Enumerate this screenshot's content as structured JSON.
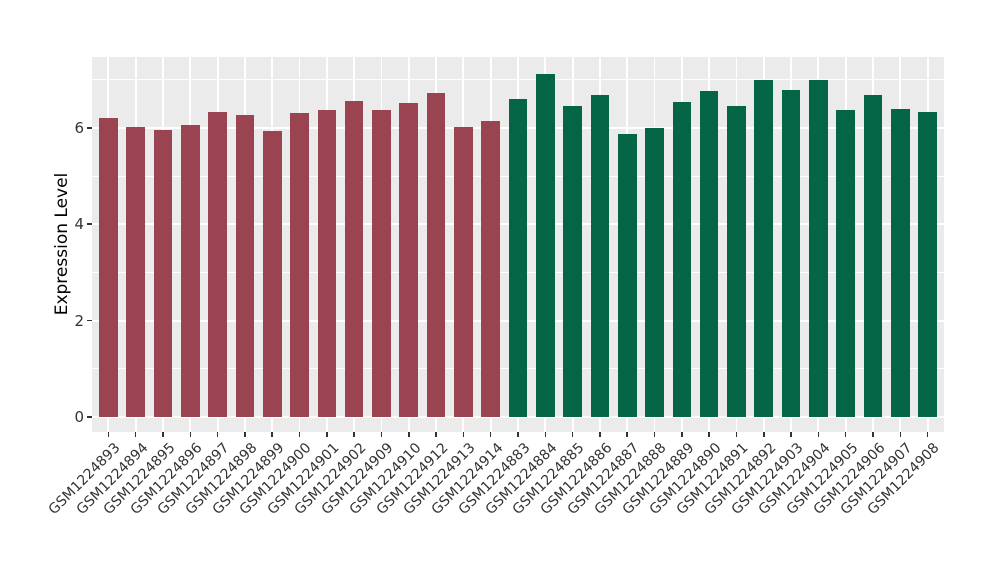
{
  "chart_data": {
    "type": "bar",
    "ylabel": "Expression Level",
    "ylim": [
      0,
      7.47
    ],
    "yticks": [
      0,
      2,
      4,
      6
    ],
    "yticks_minor": [
      1,
      3,
      5,
      7
    ],
    "grid": true,
    "legend": "none",
    "panel_bg": "#EBEBEB",
    "grid_color": "#FFFFFF",
    "axis_text_color": "#333333",
    "axis_tick_color": "#333333",
    "bar_width_fraction": 0.68,
    "series": [
      {
        "name": "group-1-maroon",
        "color": "#9A4452",
        "categories": [
          "GSM1224893",
          "GSM1224894",
          "GSM1224895",
          "GSM1224896",
          "GSM1224897",
          "GSM1224898",
          "GSM1224899",
          "GSM1224900",
          "GSM1224901",
          "GSM1224902",
          "GSM1224909",
          "GSM1224910",
          "GSM1224912",
          "GSM1224913",
          "GSM1224914"
        ],
        "values": [
          6.21,
          6.01,
          5.96,
          6.05,
          6.33,
          6.27,
          5.94,
          6.31,
          6.36,
          6.55,
          6.36,
          6.52,
          6.72,
          6.02,
          6.15
        ]
      },
      {
        "name": "group-2-green",
        "color": "#056647",
        "categories": [
          "GSM1224883",
          "GSM1224884",
          "GSM1224885",
          "GSM1224886",
          "GSM1224887",
          "GSM1224888",
          "GSM1224889",
          "GSM1224890",
          "GSM1224891",
          "GSM1224892",
          "GSM1224903",
          "GSM1224904",
          "GSM1224905",
          "GSM1224906",
          "GSM1224907",
          "GSM1224908"
        ],
        "values": [
          6.6,
          7.12,
          6.45,
          6.69,
          5.88,
          5.99,
          6.53,
          6.77,
          6.45,
          7.0,
          6.79,
          7.0,
          6.37,
          6.69,
          6.4,
          6.33
        ]
      }
    ]
  }
}
